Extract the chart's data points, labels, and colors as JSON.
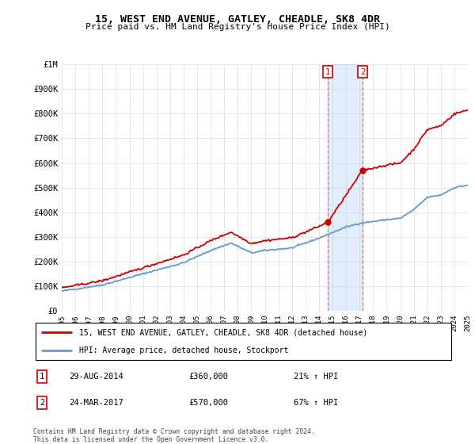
{
  "title": "15, WEST END AVENUE, GATLEY, CHEADLE, SK8 4DR",
  "subtitle": "Price paid vs. HM Land Registry's House Price Index (HPI)",
  "ylim": [
    0,
    1000000
  ],
  "yticks": [
    0,
    100000,
    200000,
    300000,
    400000,
    500000,
    600000,
    700000,
    800000,
    900000,
    1000000
  ],
  "ytick_labels": [
    "£0",
    "£100K",
    "£200K",
    "£300K",
    "£400K",
    "£500K",
    "£600K",
    "£700K",
    "£800K",
    "£900K",
    "£1M"
  ],
  "legend_line1": "15, WEST END AVENUE, GATLEY, CHEADLE, SK8 4DR (detached house)",
  "legend_line2": "HPI: Average price, detached house, Stockport",
  "transaction1_date": "29-AUG-2014",
  "transaction1_price": "£360,000",
  "transaction1_change": "21% ↑ HPI",
  "transaction2_date": "24-MAR-2017",
  "transaction2_price": "£570,000",
  "transaction2_change": "67% ↑ HPI",
  "footer1": "Contains HM Land Registry data © Crown copyright and database right 2024.",
  "footer2": "This data is licensed under the Open Government Licence v3.0.",
  "house_color": "#cc0000",
  "hpi_color": "#6699cc",
  "transaction1_x": 2014.66,
  "transaction2_x": 2017.23,
  "transaction1_y": 360000,
  "transaction2_y": 570000,
  "xmin": 1995,
  "xmax": 2025,
  "hpi_nodes_t": [
    1995,
    1998,
    2000,
    2002,
    2004,
    2006,
    2007.5,
    2009,
    2010,
    2012,
    2014,
    2016,
    2017,
    2019,
    2020,
    2021,
    2022,
    2023,
    2024,
    2025
  ],
  "hpi_nodes_v": [
    80000,
    105000,
    135000,
    165000,
    195000,
    245000,
    275000,
    235000,
    245000,
    255000,
    295000,
    340000,
    355000,
    370000,
    375000,
    410000,
    460000,
    470000,
    500000,
    510000
  ]
}
